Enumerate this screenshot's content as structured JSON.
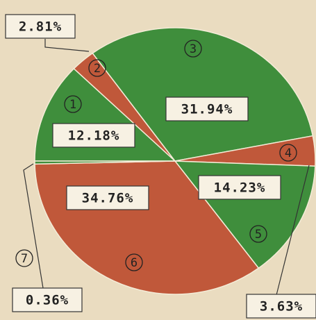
{
  "chart_data": {
    "type": "pie",
    "categories": [
      "1",
      "2",
      "3",
      "4",
      "5",
      "6",
      "7"
    ],
    "values": [
      12.18,
      2.81,
      31.94,
      3.63,
      14.23,
      34.76,
      0.36
    ],
    "value_labels": [
      "12.18%",
      "2.81%",
      "31.94%",
      "3.63%",
      "14.23%",
      "34.76%",
      "0.36%"
    ],
    "colors": [
      "#3f8e3c",
      "#c0583a",
      "#3f8e3c",
      "#c0583a",
      "#3f8e3c",
      "#c0583a",
      "#3f8e3c"
    ]
  }
}
